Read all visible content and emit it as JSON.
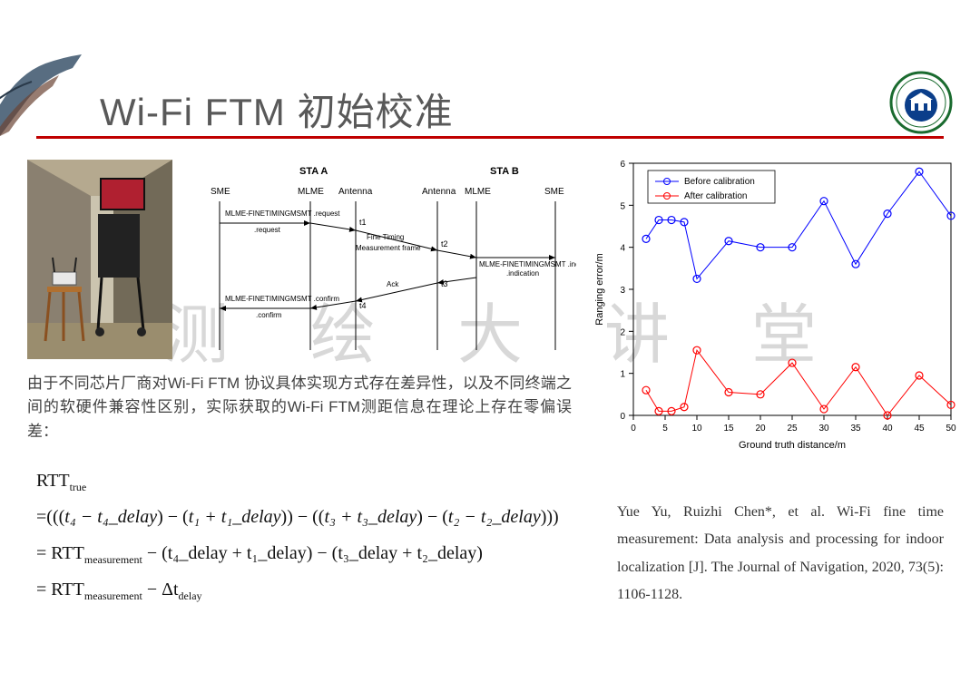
{
  "header": {
    "title": "Wi-Fi FTM 初始校准",
    "underline_color": "#c00000",
    "logo_ring_color": "#1a6b2f",
    "logo_emblem_color": "#0b3e8a"
  },
  "watermark": "测绘大讲堂",
  "diagram": {
    "topA": "STA A",
    "topB": "STA B",
    "lanes": [
      "SME",
      "MLME",
      "Antenna",
      "Antenna",
      "MLME",
      "SME"
    ],
    "msg_request": "MLME-FINETIMINGMSMT\n.request",
    "msg_frame_top": "Fine Timing",
    "msg_frame_bot": "Measurement frame",
    "msg_ack": "Ack",
    "msg_indication": "MLME-FINETIMINGMSMT\n.indication",
    "msg_confirm": "MLME-FINETIMINGMSMT\n.confirm",
    "t1": "t1",
    "t2": "t2",
    "t3": "t3",
    "t4": "t4"
  },
  "description": "由于不同芯片厂商对Wi-Fi FTM 协议具体实现方式存在差异性，以及不同终端之间的软硬件兼容性区别，实际获取的Wi-Fi FTM测距信息在理论上存在零偏误差：",
  "formula": {
    "lhs": "RTT",
    "lhs_sub": "true",
    "line1_a": "=(((",
    "line1_b": "t₄ − t₄_delay",
    "line1_c": ") − (",
    "line1_d": "t₁ + t₁_delay",
    "line1_e": ")) − ((",
    "line1_f": "t₃ + t₃_delay",
    "line1_g": ") − (",
    "line1_h": "t₂ − t₂_delay",
    "line1_i": ")))",
    "line2_a": "= RTT",
    "line2_b": "measurement",
    "line2_c": " − (t₄_delay + t₁_delay) − (t₃_delay + t₂_delay)",
    "line3_a": "= RTT",
    "line3_b": "measurement",
    "line3_c": " − Δt",
    "line3_d": "delay"
  },
  "chart": {
    "type": "line-scatter",
    "xlabel": "Ground truth distance/m",
    "ylabel": "Ranging error/m",
    "legend": [
      "Before calibration",
      "After calibration"
    ],
    "legend_colors": [
      "#0000ff",
      "#ff0000"
    ],
    "xlim": [
      0,
      50
    ],
    "ylim": [
      0,
      6
    ],
    "xticks": [
      0,
      5,
      10,
      15,
      20,
      25,
      30,
      35,
      40,
      45,
      50
    ],
    "yticks": [
      0,
      1,
      2,
      3,
      4,
      5,
      6
    ],
    "series": [
      {
        "name": "Before calibration",
        "color": "#0000ff",
        "marker": "o",
        "x": [
          2,
          4,
          6,
          8,
          10,
          15,
          20,
          25,
          30,
          35,
          40,
          45,
          50
        ],
        "y": [
          4.2,
          4.65,
          4.65,
          4.6,
          3.25,
          4.15,
          4.0,
          4.0,
          5.1,
          3.6,
          4.8,
          5.8,
          4.75
        ]
      },
      {
        "name": "After calibration",
        "color": "#ff0000",
        "marker": "o",
        "x": [
          2,
          4,
          6,
          8,
          10,
          15,
          20,
          25,
          30,
          35,
          40,
          45,
          50
        ],
        "y": [
          0.6,
          0.1,
          0.1,
          0.2,
          1.55,
          0.55,
          0.5,
          1.25,
          0.15,
          1.15,
          0.0,
          0.95,
          0.25
        ]
      }
    ],
    "axis_color": "#000000",
    "tick_fontsize": 10,
    "label_fontsize": 11
  },
  "citation": "Yue Yu, Ruizhi Chen*, et al. Wi-Fi fine time measurement: Data analysis and processing for indoor localization [J]. The Journal of Navigation, 2020, 73(5): 1106-1128."
}
